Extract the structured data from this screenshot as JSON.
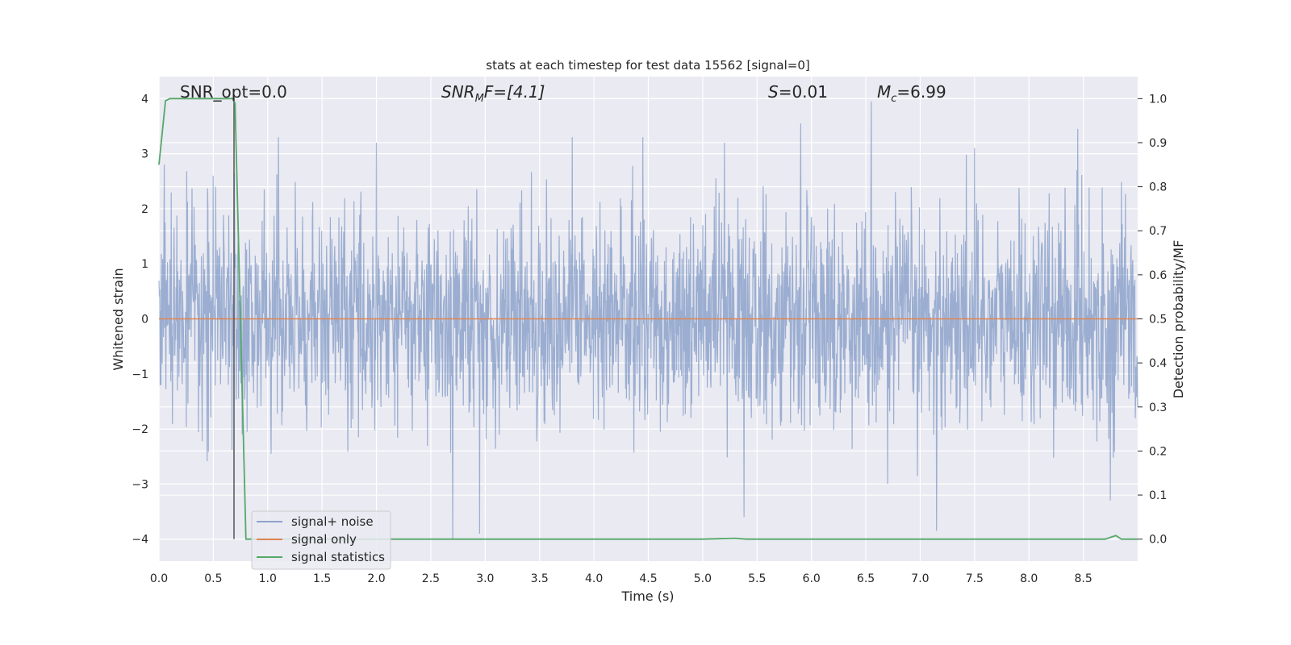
{
  "chart_data": {
    "type": "line",
    "title": "stats at each timestep for test data 15562 [signal=0]",
    "xlabel": "Time (s)",
    "ylabel": "Whitened strain",
    "ylabel_right": "Detection probability/MF",
    "xlim": [
      0.0,
      9.0
    ],
    "ylim": [
      -4.4,
      4.4
    ],
    "ylim_right": [
      -0.05,
      1.05
    ],
    "x_ticks": [
      "0.0",
      "0.5",
      "1.0",
      "1.5",
      "2.0",
      "2.5",
      "3.0",
      "3.5",
      "4.0",
      "4.5",
      "5.0",
      "5.5",
      "6.0",
      "6.5",
      "7.0",
      "7.5",
      "8.0",
      "8.5"
    ],
    "y_ticks": [
      "4",
      "3",
      "2",
      "1",
      "0",
      "−1",
      "−2",
      "−3",
      "−4"
    ],
    "y_ticks_right": [
      "1.0",
      "0.9",
      "0.8",
      "0.7",
      "0.6",
      "0.5",
      "0.4",
      "0.3",
      "0.2",
      "0.1",
      "0.0"
    ],
    "grid": true,
    "legend_position": "bottom-left",
    "annotations": {
      "snr_opt": "SNR_opt=0.0",
      "snr_mf_main": "SNR",
      "snr_mf_sub": "M",
      "snr_mf_tail": "F=[4.1]",
      "s_main": "S",
      "s_tail": "=0.01",
      "mc_main": "M",
      "mc_sub": "c",
      "mc_tail": "=6.99"
    },
    "vertical_marker_x": 0.69,
    "series": [
      {
        "name": "signal+ noise",
        "color": "#4c72b0",
        "description_values": "dense whitened noise, approx. within [-4, 4]",
        "envelope_peaks_x": [
          0.05,
          0.5,
          1.1,
          2.0,
          2.7,
          2.95,
          3.8,
          4.45,
          5.2,
          5.9,
          6.55,
          6.7,
          7.15,
          7.5,
          8.45,
          8.75
        ],
        "envelope_peaks_y": [
          2.8,
          2.6,
          3.3,
          3.2,
          -4.0,
          -3.9,
          3.3,
          3.3,
          3.2,
          3.55,
          3.95,
          -3.0,
          -3.85,
          3.1,
          3.45,
          -3.3
        ]
      },
      {
        "name": "signal only",
        "color": "#dd8452",
        "x": [
          0.0,
          9.0
        ],
        "y": [
          0.0,
          0.0
        ]
      },
      {
        "name": "signal statistics",
        "color": "#55a868",
        "x": [
          0.0,
          0.06,
          0.1,
          0.2,
          0.3,
          0.4,
          0.5,
          0.6,
          0.68,
          0.7,
          0.8,
          1.0,
          2.0,
          3.0,
          4.0,
          5.0,
          5.3,
          5.4,
          6.0,
          7.0,
          8.0,
          8.7,
          8.8,
          8.85,
          8.9,
          9.0
        ],
        "y": [
          0.85,
          0.995,
          1.0,
          1.0,
          1.0,
          1.0,
          1.0,
          1.0,
          1.0,
          0.99,
          0.0,
          0.0,
          0.0,
          0.0,
          0.0,
          0.0,
          0.002,
          0.0,
          0.0,
          0.0,
          0.0,
          0.0,
          0.008,
          0.0,
          0.0,
          0.0
        ]
      }
    ]
  }
}
